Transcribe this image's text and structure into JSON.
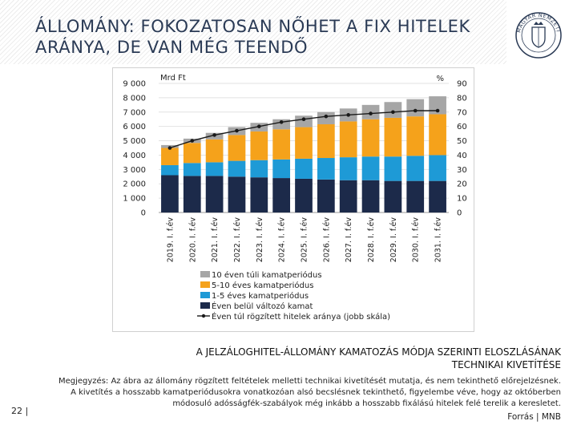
{
  "slide": {
    "title_line1": "ÁLLOMÁNY: FOKOZATOSAN NŐHET A FIX HITELEK",
    "title_line2": "ARÁNYA, DE VAN MÉG TEENDŐ",
    "logo_letters": "MAGYAR NEMZETI BANK",
    "caption_line1": "A JELZÁLOGHITEL-ÁLLOMÁNY KAMATOZÁS MÓDJA SZERINTI ELOSZLÁSÁNAK",
    "caption_line2": "TECHNIKAI KIVETÍTÉSE",
    "note_line1": "Megjegyzés: Az ábra az állomány rögzített feltételek melletti technikai kivetítését mutatja, és nem tekinthető előrejelzésnek.",
    "note_line2": "A kivetítés a hosszabb kamatperiódusokra vonatkozóan alsó becslésnek tekinthető, figyelembe véve, hogy az októberben",
    "note_line3": "módosuló adósságfék-szabályok még inkább a hosszabb fixálású hitelek felé terelik a keresletet.",
    "source": "Forrás | MNB",
    "page_number": "22 |"
  },
  "colors": {
    "s10": "#a6a6a6",
    "s5_10": "#f5a21b",
    "s1_5": "#1e9ad6",
    "s_var": "#1c2a4a",
    "line": "#1a1a1a",
    "title": "#2a3a55"
  },
  "chart_data": {
    "type": "bar",
    "stacked": true,
    "left_axis_label": "Mrd Ft",
    "right_axis_label": "%",
    "left_ylim": [
      0,
      9000
    ],
    "right_ylim": [
      0,
      90
    ],
    "left_ticks": [
      "0",
      "1 000",
      "2 000",
      "3 000",
      "4 000",
      "5 000",
      "6 000",
      "7 000",
      "8 000",
      "9 000"
    ],
    "right_ticks": [
      "0",
      "10",
      "20",
      "30",
      "40",
      "50",
      "60",
      "70",
      "80",
      "90"
    ],
    "categories": [
      "2019. I. f.év",
      "2020. I. f.év",
      "2021. I. f.év",
      "2022. I. f.év",
      "2023. I. f.év",
      "2024. I. f.év",
      "2025. I. f.év",
      "2026. I. f.év",
      "2027. I. f.év",
      "2028. I. f.év",
      "2029. I. f.év",
      "2030. I. f.év",
      "2031. I. f.év"
    ],
    "series": [
      {
        "name": "Éven belül változó kamat",
        "key": "s_var",
        "values": [
          2600,
          2550,
          2550,
          2500,
          2450,
          2400,
          2350,
          2300,
          2250,
          2250,
          2200,
          2200,
          2200
        ]
      },
      {
        "name": "1-5 éves kamatperiódus",
        "key": "s1_5",
        "values": [
          700,
          900,
          950,
          1100,
          1200,
          1300,
          1400,
          1500,
          1600,
          1650,
          1700,
          1750,
          1800
        ]
      },
      {
        "name": "5-10 éves kamatperiódus",
        "key": "s5_10",
        "values": [
          1200,
          1400,
          1600,
          1800,
          2000,
          2100,
          2200,
          2350,
          2500,
          2600,
          2700,
          2750,
          2850
        ]
      },
      {
        "name": "10 éven túli kamatperiódus",
        "key": "s10",
        "values": [
          200,
          300,
          450,
          550,
          600,
          700,
          800,
          850,
          900,
          1000,
          1100,
          1200,
          1250
        ]
      }
    ],
    "line_series": {
      "name": "Éven túl rögzített hitelek aránya (jobb skála)",
      "axis": "right",
      "values": [
        45,
        50,
        54,
        57,
        60,
        63,
        65,
        67,
        68,
        69,
        70,
        71,
        71
      ]
    },
    "legend": [
      {
        "label": "10 éven túli kamatperiódus",
        "key": "s10",
        "kind": "box"
      },
      {
        "label": "5-10 éves kamatperiódus",
        "key": "s5_10",
        "kind": "box"
      },
      {
        "label": "1-5 éves kamatperiódus",
        "key": "s1_5",
        "kind": "box"
      },
      {
        "label": "Éven belül változó kamat",
        "key": "s_var",
        "kind": "box"
      },
      {
        "label": "Éven túl rögzített hitelek aránya (jobb skála)",
        "key": "line",
        "kind": "line"
      }
    ],
    "legend_position": "bottom"
  }
}
